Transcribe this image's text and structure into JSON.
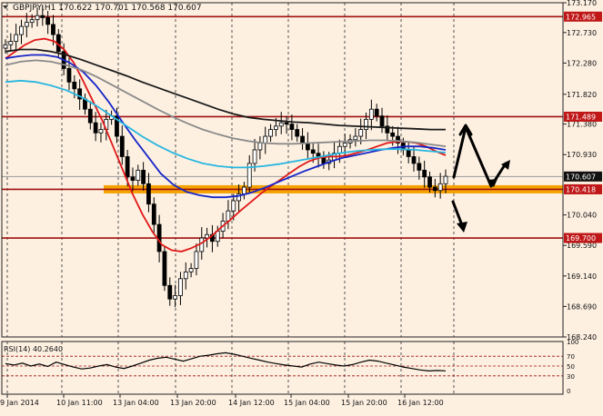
{
  "header": {
    "symbol_line": "GBPJPY,H1  170.622 170.701 170.568 170.607",
    "collapse_icon": "triangle-down-icon"
  },
  "chart_data": {
    "type": "candlestick",
    "symbol": "GBPJPY",
    "timeframe": "H1",
    "ohlc": {
      "open": 170.622,
      "high": 170.701,
      "low": 170.568,
      "close": 170.607
    },
    "ylim": [
      168.24,
      173.17
    ],
    "y_ticks": [
      {
        "label": "173.170",
        "value": 173.17
      },
      {
        "label": "172.730",
        "value": 172.73
      },
      {
        "label": "172.280",
        "value": 172.28
      },
      {
        "label": "171.820",
        "value": 171.82
      },
      {
        "label": "171.380",
        "value": 171.38
      },
      {
        "label": "170.930",
        "value": 170.93
      },
      {
        "label": "170.040",
        "value": 170.04
      },
      {
        "label": "169.590",
        "value": 169.59
      },
      {
        "label": "169.140",
        "value": 169.14
      },
      {
        "label": "168.690",
        "value": 168.69
      },
      {
        "label": "168.240",
        "value": 168.24
      }
    ],
    "x_ticks": [
      "9 Jan 2014",
      "10 Jan 11:00",
      "13 Jan 04:00",
      "13 Jan 20:00",
      "14 Jan 12:00",
      "15 Jan 04:00",
      "15 Jan 20:00",
      "16 Jan 12:00"
    ],
    "resistance_levels": [
      {
        "value": 172.965,
        "label": "172.965"
      },
      {
        "value": 171.489,
        "label": "171.489"
      },
      {
        "value": 169.7,
        "label": "169.700"
      }
    ],
    "support_zone": {
      "value": 170.418,
      "label": "170.418"
    },
    "current_price": {
      "value": 170.607,
      "label": "170.607"
    },
    "close_series": [
      172.55,
      172.6,
      172.7,
      172.82,
      172.88,
      172.92,
      172.98,
      172.95,
      172.85,
      172.7,
      172.45,
      172.2,
      172.0,
      171.9,
      171.75,
      171.6,
      171.4,
      171.25,
      171.3,
      171.45,
      171.5,
      171.2,
      170.9,
      170.6,
      170.55,
      170.7,
      170.5,
      170.2,
      169.9,
      169.5,
      169.0,
      168.8,
      168.85,
      169.1,
      169.2,
      169.25,
      169.5,
      169.7,
      169.75,
      169.65,
      169.8,
      169.95,
      170.1,
      170.25,
      170.35,
      170.45,
      170.8,
      171.0,
      171.1,
      171.2,
      171.3,
      171.35,
      171.4,
      171.38,
      171.3,
      171.2,
      171.1,
      171.0,
      170.95,
      170.9,
      170.8,
      170.85,
      170.95,
      171.05,
      171.1,
      171.15,
      171.2,
      171.3,
      171.45,
      171.6,
      171.5,
      171.35,
      171.25,
      171.2,
      171.1,
      171.0,
      170.9,
      170.8,
      170.7,
      170.6,
      170.45,
      170.4,
      170.5,
      170.61
    ],
    "ma_series": [
      {
        "name": "",
        "color": "#e01818",
        "values": [
          172.35,
          172.45,
          172.55,
          172.62,
          172.64,
          172.6,
          172.48,
          172.28,
          172.0,
          171.7,
          171.4,
          171.05,
          170.7,
          170.35,
          170.05,
          169.8,
          169.6,
          169.52,
          169.5,
          169.55,
          169.62,
          169.72,
          169.85,
          169.97,
          170.1,
          170.22,
          170.34,
          170.45,
          170.55,
          170.65,
          170.75,
          170.83,
          170.88,
          170.9,
          170.9,
          170.92,
          170.96,
          171.0,
          171.05,
          171.1,
          171.12,
          171.12,
          171.1,
          171.05,
          170.98,
          170.92
        ]
      },
      {
        "name": "",
        "color": "#1626c8",
        "values": [
          172.35,
          172.38,
          172.4,
          172.4,
          172.37,
          172.28,
          172.15,
          171.95,
          171.7,
          171.42,
          171.15,
          170.9,
          170.65,
          170.48,
          170.38,
          170.33,
          170.3,
          170.3,
          170.32,
          170.37,
          170.44,
          170.52,
          170.6,
          170.68,
          170.75,
          170.82,
          170.88,
          170.92,
          170.96,
          171.0,
          171.03,
          171.05,
          171.05,
          171.03,
          171.0
        ]
      },
      {
        "name": "",
        "color": "#1a1a1a",
        "values": [
          172.45,
          172.48,
          172.48,
          172.45,
          172.4,
          172.33,
          172.25,
          172.17,
          172.09,
          172.0,
          171.92,
          171.84,
          171.76,
          171.68,
          171.6,
          171.53,
          171.48,
          171.45,
          171.43,
          171.41,
          171.4,
          171.38,
          171.36,
          171.35,
          171.34,
          171.33,
          171.32,
          171.31,
          171.3,
          171.3
        ]
      },
      {
        "name": "",
        "color": "#8a8a8a",
        "values": [
          172.25,
          172.3,
          172.32,
          172.3,
          172.25,
          172.18,
          172.08,
          171.96,
          171.84,
          171.72,
          171.6,
          171.49,
          171.39,
          171.3,
          171.23,
          171.17,
          171.13,
          171.1,
          171.09,
          171.09,
          171.1,
          171.11,
          171.12,
          171.13,
          171.14,
          171.14,
          171.13,
          171.11,
          171.08,
          171.05
        ]
      },
      {
        "name": "",
        "color": "#27b6e0",
        "values": [
          172.0,
          172.02,
          172.0,
          171.95,
          171.88,
          171.78,
          171.65,
          171.5,
          171.35,
          171.2,
          171.07,
          170.96,
          170.87,
          170.8,
          170.76,
          170.74,
          170.74,
          170.76,
          170.79,
          170.83,
          170.87,
          170.91,
          170.95,
          170.98,
          171.0,
          171.01,
          171.01,
          171.0,
          170.98,
          170.96
        ]
      }
    ],
    "arrows": [
      "up",
      "down",
      "up",
      "down"
    ],
    "rsi": {
      "label": "RSI(14) 40.2640",
      "levels": [
        {
          "label": "100",
          "value": 100
        },
        {
          "label": "70",
          "value": 70
        },
        {
          "label": "50",
          "value": 50
        },
        {
          "label": "30",
          "value": 30
        },
        {
          "label": "0",
          "value": 0
        }
      ],
      "values": [
        55,
        52,
        56,
        50,
        54,
        49,
        58,
        53,
        48,
        44,
        46,
        50,
        53,
        48,
        45,
        50,
        56,
        62,
        66,
        68,
        64,
        60,
        65,
        70,
        72,
        75,
        77,
        74,
        70,
        66,
        62,
        58,
        55,
        52,
        50,
        48,
        54,
        58,
        55,
        52,
        50,
        53,
        58,
        62,
        60,
        56,
        52,
        48,
        45,
        42,
        40,
        41,
        40.26
      ]
    },
    "colors": {
      "background": "#fdf0e1",
      "resistance": "#a01010",
      "support_band": "#f5a200",
      "label_bg": "#c01818",
      "candle_bull": "#000000",
      "candle_bear": "#000000",
      "arrows": "#000000"
    }
  }
}
